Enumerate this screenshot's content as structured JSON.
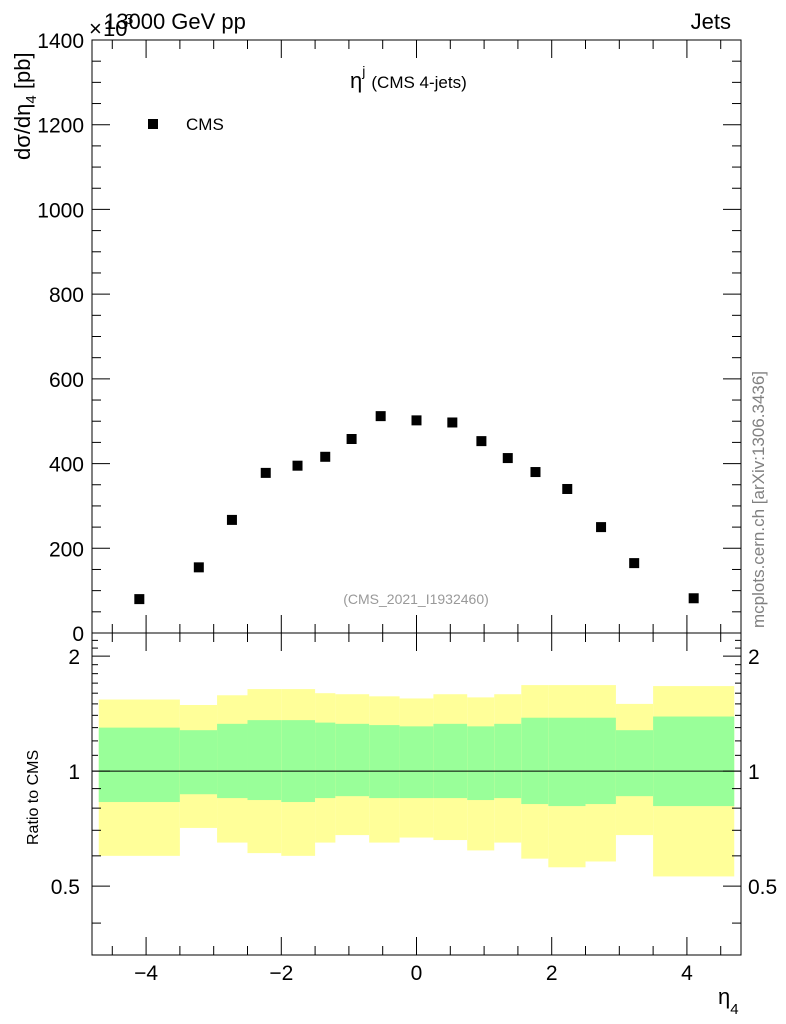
{
  "header": {
    "left": "13000 GeV pp",
    "right": "Jets"
  },
  "watermark": "mcplots.cern.ch [arXiv:1306.3436]",
  "analysis_label": "(CMS_2021_I1932460)",
  "plot_title": {
    "main": "η",
    "sup": "j",
    "rest": "(CMS 4-jets)"
  },
  "y_multiplier": {
    "times": "×",
    "base": "10",
    "exp": "3"
  },
  "top_ylabel": {
    "a": "dσ/dη",
    "sub": "4",
    "b": " [pb]"
  },
  "ratio_ylabel": "Ratio to CMS",
  "xlabel": {
    "main": "η",
    "sub": "4"
  },
  "legend": {
    "label": "CMS",
    "marker_color": "#000000",
    "position": "top-left"
  },
  "colors": {
    "inner_band": "#99ff99",
    "outer_band": "#ffff99",
    "line": "#000000"
  },
  "chart_data": [
    {
      "type": "scatter",
      "name": "main",
      "xlim": [
        -4.8,
        4.8
      ],
      "ylim": [
        0,
        1400
      ],
      "yunit_note": "×10^3",
      "yticks": [
        0,
        200,
        400,
        600,
        800,
        1000,
        1200,
        1400
      ],
      "yticklabels": [
        "0",
        "200",
        "400",
        "600",
        "800",
        "1000",
        "1200",
        "1400"
      ],
      "series": [
        {
          "name": "CMS",
          "x": [
            -4.1,
            -3.22,
            -2.73,
            -2.23,
            -1.76,
            -1.35,
            -0.96,
            -0.53,
            0.0,
            0.53,
            0.96,
            1.35,
            1.76,
            2.23,
            2.73,
            3.22,
            4.1
          ],
          "y": [
            80,
            155,
            267,
            378,
            395,
            416,
            458,
            512,
            502,
            497,
            453,
            413,
            380,
            340,
            250,
            165,
            82
          ]
        }
      ]
    },
    {
      "type": "area",
      "name": "ratio",
      "xlim": [
        -4.8,
        4.8
      ],
      "ylim": [
        0.33,
        2.3
      ],
      "yticks": [
        0.5,
        1,
        2
      ],
      "yticklabels": [
        "0.5",
        "1",
        "2"
      ],
      "xticks": [
        -4,
        -2,
        0,
        2,
        4
      ],
      "xticklabels": [
        "−4",
        "−2",
        "0",
        "2",
        "4"
      ],
      "bins": [
        -4.7,
        -3.5,
        -2.95,
        -2.5,
        -2.0,
        -1.5,
        -1.2,
        -0.7,
        -0.25,
        0.25,
        0.75,
        1.15,
        1.55,
        1.95,
        2.5,
        2.95,
        3.5,
        4.7
      ],
      "band_inner_low": [
        0.83,
        0.87,
        0.85,
        0.84,
        0.83,
        0.85,
        0.86,
        0.85,
        0.85,
        0.85,
        0.84,
        0.85,
        0.82,
        0.81,
        0.82,
        0.86,
        0.81
      ],
      "band_inner_high": [
        1.3,
        1.28,
        1.33,
        1.36,
        1.36,
        1.34,
        1.33,
        1.32,
        1.31,
        1.33,
        1.31,
        1.33,
        1.38,
        1.38,
        1.38,
        1.28,
        1.39
      ],
      "band_outer_low": [
        0.6,
        0.71,
        0.65,
        0.61,
        0.6,
        0.65,
        0.68,
        0.65,
        0.67,
        0.66,
        0.62,
        0.65,
        0.59,
        0.56,
        0.58,
        0.68,
        0.53
      ],
      "band_outer_high": [
        1.54,
        1.49,
        1.58,
        1.64,
        1.64,
        1.6,
        1.59,
        1.57,
        1.55,
        1.59,
        1.56,
        1.59,
        1.68,
        1.68,
        1.68,
        1.5,
        1.67
      ],
      "reference_line": 1
    }
  ]
}
